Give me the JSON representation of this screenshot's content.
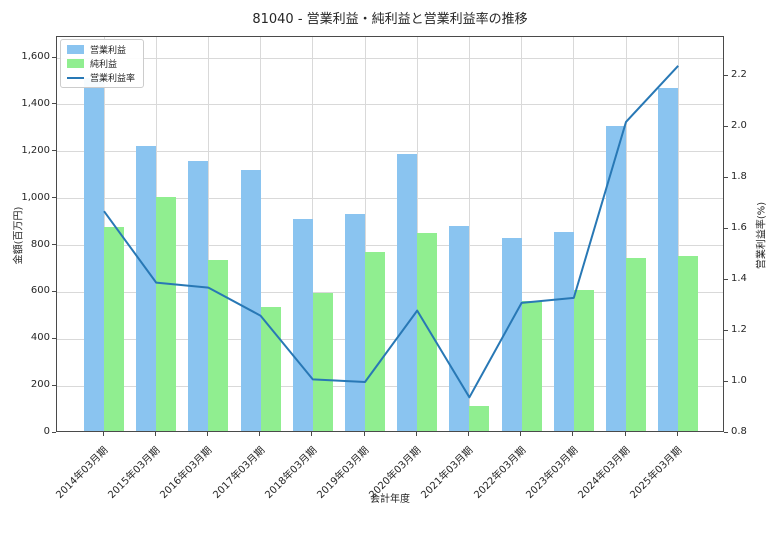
{
  "title": "81040 - 営業利益・純利益と営業利益率の推移",
  "chart_data": {
    "type": "bar",
    "subtype": "grouped-bars-with-line-overlay",
    "title": "81040 - 営業利益・純利益と営業利益率の推移",
    "xlabel": "会計年度",
    "ylabel_left": "金額(百万円)",
    "ylabel_right": "営業利益率(%)",
    "categories": [
      "2014年03月期",
      "2015年03月期",
      "2016年03月期",
      "2017年03月期",
      "2018年03月期",
      "2019年03月期",
      "2020年03月期",
      "2021年03月期",
      "2022年03月期",
      "2023年03月期",
      "2024年03月期",
      "2025年03月期"
    ],
    "series": [
      {
        "key": "operating-profit",
        "name": "営業利益",
        "type": "bar",
        "axis": "left",
        "color": "#8ac4f0",
        "values": [
          1505,
          1215,
          1150,
          1115,
          905,
          925,
          1180,
          875,
          825,
          850,
          1300,
          1465
        ]
      },
      {
        "key": "net-profit",
        "name": "純利益",
        "type": "bar",
        "axis": "left",
        "color": "#90ee90",
        "values": [
          870,
          1000,
          730,
          530,
          590,
          765,
          845,
          105,
          555,
          600,
          740,
          745
        ]
      },
      {
        "key": "operating-margin",
        "name": "営業利益率",
        "type": "line",
        "axis": "right",
        "color": "#2878b5",
        "values": [
          1.67,
          1.39,
          1.37,
          1.26,
          1.01,
          1.0,
          1.28,
          0.94,
          1.31,
          1.33,
          2.02,
          2.24
        ]
      }
    ],
    "left_axis": {
      "min": 0,
      "max": 1690,
      "tick_values": [
        0,
        200,
        400,
        600,
        800,
        1000,
        1200,
        1400,
        1600
      ],
      "tick_labels": [
        "0",
        "200",
        "400",
        "600",
        "800",
        "1,000",
        "1,200",
        "1,400",
        "1,600"
      ]
    },
    "right_axis": {
      "min": 0.8,
      "max": 2.353,
      "tick_values": [
        0.8,
        1.0,
        1.2,
        1.4,
        1.6,
        1.8,
        2.0,
        2.2
      ],
      "tick_labels": [
        "0.8",
        "1.0",
        "1.2",
        "1.4",
        "1.6",
        "1.8",
        "2.0",
        "2.2"
      ]
    },
    "grid": true,
    "legend_position": "upper left",
    "colors": {
      "grid": "#d9d9d9",
      "spine": "#4a4a4a",
      "text": "#262626",
      "background": "#ffffff"
    }
  }
}
